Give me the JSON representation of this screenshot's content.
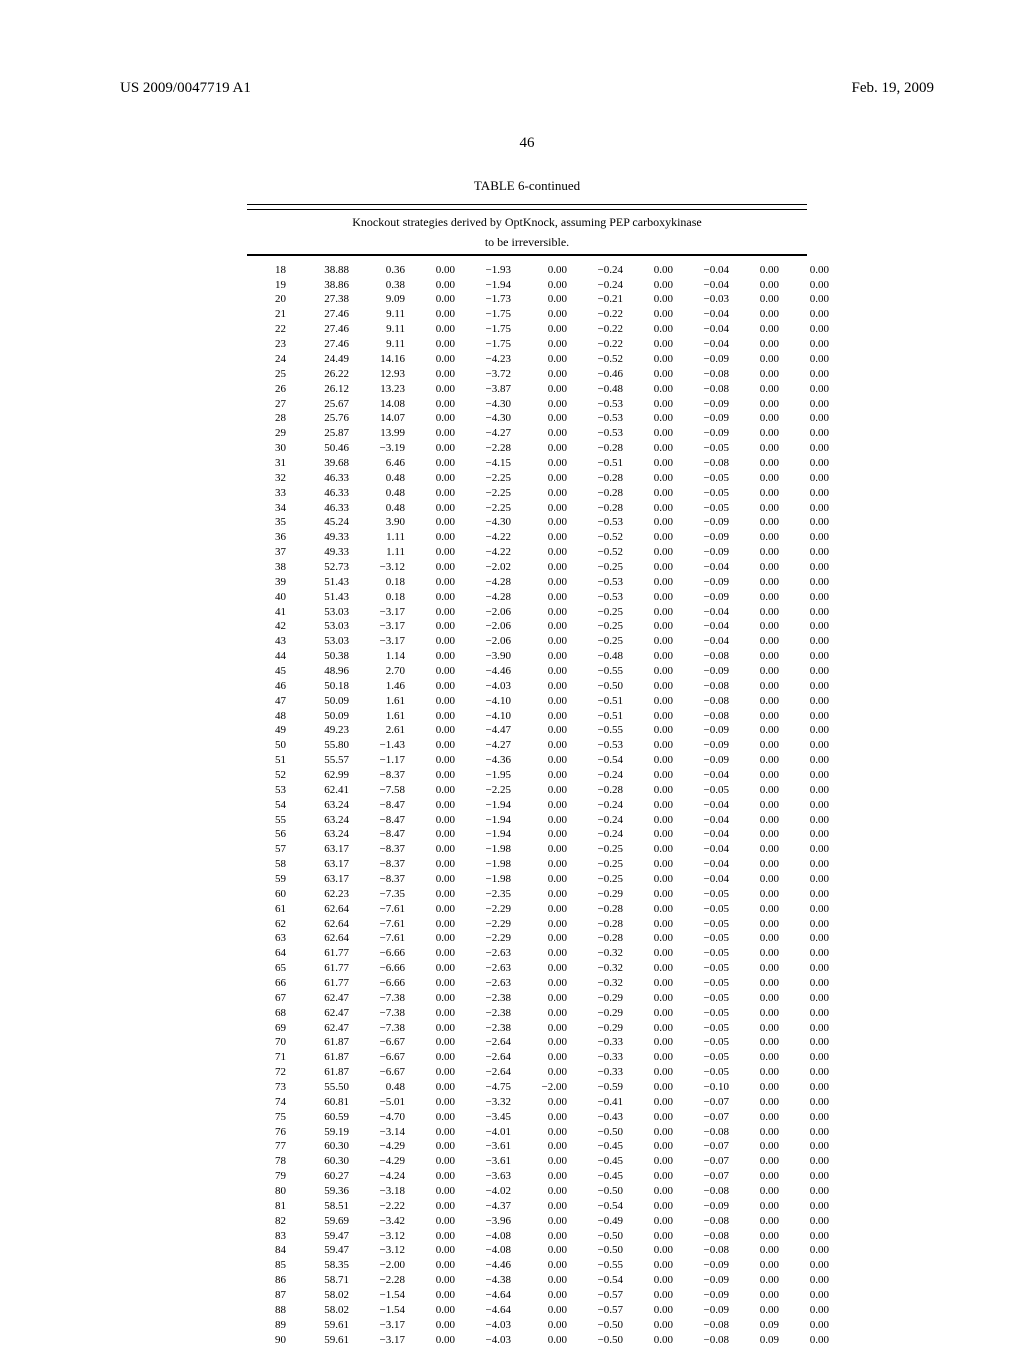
{
  "header": {
    "left": "US 2009/0047719 A1",
    "right": "Feb. 19, 2009"
  },
  "page_number": "46",
  "table": {
    "type": "table",
    "title": "TABLE 6-continued",
    "caption_line1": "Knockout strategies derived by OptKnock, assuming PEP carboxykinase",
    "caption_line2": "to be irreversible.",
    "rows": [
      [
        "18",
        "38.88",
        "0.36",
        "0.00",
        "−1.93",
        "0.00",
        "−0.24",
        "0.00",
        "−0.04",
        "0.00",
        "0.00"
      ],
      [
        "19",
        "38.86",
        "0.38",
        "0.00",
        "−1.94",
        "0.00",
        "−0.24",
        "0.00",
        "−0.04",
        "0.00",
        "0.00"
      ],
      [
        "20",
        "27.38",
        "9.09",
        "0.00",
        "−1.73",
        "0.00",
        "−0.21",
        "0.00",
        "−0.03",
        "0.00",
        "0.00"
      ],
      [
        "21",
        "27.46",
        "9.11",
        "0.00",
        "−1.75",
        "0.00",
        "−0.22",
        "0.00",
        "−0.04",
        "0.00",
        "0.00"
      ],
      [
        "22",
        "27.46",
        "9.11",
        "0.00",
        "−1.75",
        "0.00",
        "−0.22",
        "0.00",
        "−0.04",
        "0.00",
        "0.00"
      ],
      [
        "23",
        "27.46",
        "9.11",
        "0.00",
        "−1.75",
        "0.00",
        "−0.22",
        "0.00",
        "−0.04",
        "0.00",
        "0.00"
      ],
      [
        "24",
        "24.49",
        "14.16",
        "0.00",
        "−4.23",
        "0.00",
        "−0.52",
        "0.00",
        "−0.09",
        "0.00",
        "0.00"
      ],
      [
        "25",
        "26.22",
        "12.93",
        "0.00",
        "−3.72",
        "0.00",
        "−0.46",
        "0.00",
        "−0.08",
        "0.00",
        "0.00"
      ],
      [
        "26",
        "26.12",
        "13.23",
        "0.00",
        "−3.87",
        "0.00",
        "−0.48",
        "0.00",
        "−0.08",
        "0.00",
        "0.00"
      ],
      [
        "27",
        "25.67",
        "14.08",
        "0.00",
        "−4.30",
        "0.00",
        "−0.53",
        "0.00",
        "−0.09",
        "0.00",
        "0.00"
      ],
      [
        "28",
        "25.76",
        "14.07",
        "0.00",
        "−4.30",
        "0.00",
        "−0.53",
        "0.00",
        "−0.09",
        "0.00",
        "0.00"
      ],
      [
        "29",
        "25.87",
        "13.99",
        "0.00",
        "−4.27",
        "0.00",
        "−0.53",
        "0.00",
        "−0.09",
        "0.00",
        "0.00"
      ],
      [
        "30",
        "50.46",
        "−3.19",
        "0.00",
        "−2.28",
        "0.00",
        "−0.28",
        "0.00",
        "−0.05",
        "0.00",
        "0.00"
      ],
      [
        "31",
        "39.68",
        "6.46",
        "0.00",
        "−4.15",
        "0.00",
        "−0.51",
        "0.00",
        "−0.08",
        "0.00",
        "0.00"
      ],
      [
        "32",
        "46.33",
        "0.48",
        "0.00",
        "−2.25",
        "0.00",
        "−0.28",
        "0.00",
        "−0.05",
        "0.00",
        "0.00"
      ],
      [
        "33",
        "46.33",
        "0.48",
        "0.00",
        "−2.25",
        "0.00",
        "−0.28",
        "0.00",
        "−0.05",
        "0.00",
        "0.00"
      ],
      [
        "34",
        "46.33",
        "0.48",
        "0.00",
        "−2.25",
        "0.00",
        "−0.28",
        "0.00",
        "−0.05",
        "0.00",
        "0.00"
      ],
      [
        "35",
        "45.24",
        "3.90",
        "0.00",
        "−4.30",
        "0.00",
        "−0.53",
        "0.00",
        "−0.09",
        "0.00",
        "0.00"
      ],
      [
        "36",
        "49.33",
        "1.11",
        "0.00",
        "−4.22",
        "0.00",
        "−0.52",
        "0.00",
        "−0.09",
        "0.00",
        "0.00"
      ],
      [
        "37",
        "49.33",
        "1.11",
        "0.00",
        "−4.22",
        "0.00",
        "−0.52",
        "0.00",
        "−0.09",
        "0.00",
        "0.00"
      ],
      [
        "38",
        "52.73",
        "−3.12",
        "0.00",
        "−2.02",
        "0.00",
        "−0.25",
        "0.00",
        "−0.04",
        "0.00",
        "0.00"
      ],
      [
        "39",
        "51.43",
        "0.18",
        "0.00",
        "−4.28",
        "0.00",
        "−0.53",
        "0.00",
        "−0.09",
        "0.00",
        "0.00"
      ],
      [
        "40",
        "51.43",
        "0.18",
        "0.00",
        "−4.28",
        "0.00",
        "−0.53",
        "0.00",
        "−0.09",
        "0.00",
        "0.00"
      ],
      [
        "41",
        "53.03",
        "−3.17",
        "0.00",
        "−2.06",
        "0.00",
        "−0.25",
        "0.00",
        "−0.04",
        "0.00",
        "0.00"
      ],
      [
        "42",
        "53.03",
        "−3.17",
        "0.00",
        "−2.06",
        "0.00",
        "−0.25",
        "0.00",
        "−0.04",
        "0.00",
        "0.00"
      ],
      [
        "43",
        "53.03",
        "−3.17",
        "0.00",
        "−2.06",
        "0.00",
        "−0.25",
        "0.00",
        "−0.04",
        "0.00",
        "0.00"
      ],
      [
        "44",
        "50.38",
        "1.14",
        "0.00",
        "−3.90",
        "0.00",
        "−0.48",
        "0.00",
        "−0.08",
        "0.00",
        "0.00"
      ],
      [
        "45",
        "48.96",
        "2.70",
        "0.00",
        "−4.46",
        "0.00",
        "−0.55",
        "0.00",
        "−0.09",
        "0.00",
        "0.00"
      ],
      [
        "46",
        "50.18",
        "1.46",
        "0.00",
        "−4.03",
        "0.00",
        "−0.50",
        "0.00",
        "−0.08",
        "0.00",
        "0.00"
      ],
      [
        "47",
        "50.09",
        "1.61",
        "0.00",
        "−4.10",
        "0.00",
        "−0.51",
        "0.00",
        "−0.08",
        "0.00",
        "0.00"
      ],
      [
        "48",
        "50.09",
        "1.61",
        "0.00",
        "−4.10",
        "0.00",
        "−0.51",
        "0.00",
        "−0.08",
        "0.00",
        "0.00"
      ],
      [
        "49",
        "49.23",
        "2.61",
        "0.00",
        "−4.47",
        "0.00",
        "−0.55",
        "0.00",
        "−0.09",
        "0.00",
        "0.00"
      ],
      [
        "50",
        "55.80",
        "−1.43",
        "0.00",
        "−4.27",
        "0.00",
        "−0.53",
        "0.00",
        "−0.09",
        "0.00",
        "0.00"
      ],
      [
        "51",
        "55.57",
        "−1.17",
        "0.00",
        "−4.36",
        "0.00",
        "−0.54",
        "0.00",
        "−0.09",
        "0.00",
        "0.00"
      ],
      [
        "52",
        "62.99",
        "−8.37",
        "0.00",
        "−1.95",
        "0.00",
        "−0.24",
        "0.00",
        "−0.04",
        "0.00",
        "0.00"
      ],
      [
        "53",
        "62.41",
        "−7.58",
        "0.00",
        "−2.25",
        "0.00",
        "−0.28",
        "0.00",
        "−0.05",
        "0.00",
        "0.00"
      ],
      [
        "54",
        "63.24",
        "−8.47",
        "0.00",
        "−1.94",
        "0.00",
        "−0.24",
        "0.00",
        "−0.04",
        "0.00",
        "0.00"
      ],
      [
        "55",
        "63.24",
        "−8.47",
        "0.00",
        "−1.94",
        "0.00",
        "−0.24",
        "0.00",
        "−0.04",
        "0.00",
        "0.00"
      ],
      [
        "56",
        "63.24",
        "−8.47",
        "0.00",
        "−1.94",
        "0.00",
        "−0.24",
        "0.00",
        "−0.04",
        "0.00",
        "0.00"
      ],
      [
        "57",
        "63.17",
        "−8.37",
        "0.00",
        "−1.98",
        "0.00",
        "−0.25",
        "0.00",
        "−0.04",
        "0.00",
        "0.00"
      ],
      [
        "58",
        "63.17",
        "−8.37",
        "0.00",
        "−1.98",
        "0.00",
        "−0.25",
        "0.00",
        "−0.04",
        "0.00",
        "0.00"
      ],
      [
        "59",
        "63.17",
        "−8.37",
        "0.00",
        "−1.98",
        "0.00",
        "−0.25",
        "0.00",
        "−0.04",
        "0.00",
        "0.00"
      ],
      [
        "60",
        "62.23",
        "−7.35",
        "0.00",
        "−2.35",
        "0.00",
        "−0.29",
        "0.00",
        "−0.05",
        "0.00",
        "0.00"
      ],
      [
        "61",
        "62.64",
        "−7.61",
        "0.00",
        "−2.29",
        "0.00",
        "−0.28",
        "0.00",
        "−0.05",
        "0.00",
        "0.00"
      ],
      [
        "62",
        "62.64",
        "−7.61",
        "0.00",
        "−2.29",
        "0.00",
        "−0.28",
        "0.00",
        "−0.05",
        "0.00",
        "0.00"
      ],
      [
        "63",
        "62.64",
        "−7.61",
        "0.00",
        "−2.29",
        "0.00",
        "−0.28",
        "0.00",
        "−0.05",
        "0.00",
        "0.00"
      ],
      [
        "64",
        "61.77",
        "−6.66",
        "0.00",
        "−2.63",
        "0.00",
        "−0.32",
        "0.00",
        "−0.05",
        "0.00",
        "0.00"
      ],
      [
        "65",
        "61.77",
        "−6.66",
        "0.00",
        "−2.63",
        "0.00",
        "−0.32",
        "0.00",
        "−0.05",
        "0.00",
        "0.00"
      ],
      [
        "66",
        "61.77",
        "−6.66",
        "0.00",
        "−2.63",
        "0.00",
        "−0.32",
        "0.00",
        "−0.05",
        "0.00",
        "0.00"
      ],
      [
        "67",
        "62.47",
        "−7.38",
        "0.00",
        "−2.38",
        "0.00",
        "−0.29",
        "0.00",
        "−0.05",
        "0.00",
        "0.00"
      ],
      [
        "68",
        "62.47",
        "−7.38",
        "0.00",
        "−2.38",
        "0.00",
        "−0.29",
        "0.00",
        "−0.05",
        "0.00",
        "0.00"
      ],
      [
        "69",
        "62.47",
        "−7.38",
        "0.00",
        "−2.38",
        "0.00",
        "−0.29",
        "0.00",
        "−0.05",
        "0.00",
        "0.00"
      ],
      [
        "70",
        "61.87",
        "−6.67",
        "0.00",
        "−2.64",
        "0.00",
        "−0.33",
        "0.00",
        "−0.05",
        "0.00",
        "0.00"
      ],
      [
        "71",
        "61.87",
        "−6.67",
        "0.00",
        "−2.64",
        "0.00",
        "−0.33",
        "0.00",
        "−0.05",
        "0.00",
        "0.00"
      ],
      [
        "72",
        "61.87",
        "−6.67",
        "0.00",
        "−2.64",
        "0.00",
        "−0.33",
        "0.00",
        "−0.05",
        "0.00",
        "0.00"
      ],
      [
        "73",
        "55.50",
        "0.48",
        "0.00",
        "−4.75",
        "−2.00",
        "−0.59",
        "0.00",
        "−0.10",
        "0.00",
        "0.00"
      ],
      [
        "74",
        "60.81",
        "−5.01",
        "0.00",
        "−3.32",
        "0.00",
        "−0.41",
        "0.00",
        "−0.07",
        "0.00",
        "0.00"
      ],
      [
        "75",
        "60.59",
        "−4.70",
        "0.00",
        "−3.45",
        "0.00",
        "−0.43",
        "0.00",
        "−0.07",
        "0.00",
        "0.00"
      ],
      [
        "76",
        "59.19",
        "−3.14",
        "0.00",
        "−4.01",
        "0.00",
        "−0.50",
        "0.00",
        "−0.08",
        "0.00",
        "0.00"
      ],
      [
        "77",
        "60.30",
        "−4.29",
        "0.00",
        "−3.61",
        "0.00",
        "−0.45",
        "0.00",
        "−0.07",
        "0.00",
        "0.00"
      ],
      [
        "78",
        "60.30",
        "−4.29",
        "0.00",
        "−3.61",
        "0.00",
        "−0.45",
        "0.00",
        "−0.07",
        "0.00",
        "0.00"
      ],
      [
        "79",
        "60.27",
        "−4.24",
        "0.00",
        "−3.63",
        "0.00",
        "−0.45",
        "0.00",
        "−0.07",
        "0.00",
        "0.00"
      ],
      [
        "80",
        "59.36",
        "−3.18",
        "0.00",
        "−4.02",
        "0.00",
        "−0.50",
        "0.00",
        "−0.08",
        "0.00",
        "0.00"
      ],
      [
        "81",
        "58.51",
        "−2.22",
        "0.00",
        "−4.37",
        "0.00",
        "−0.54",
        "0.00",
        "−0.09",
        "0.00",
        "0.00"
      ],
      [
        "82",
        "59.69",
        "−3.42",
        "0.00",
        "−3.96",
        "0.00",
        "−0.49",
        "0.00",
        "−0.08",
        "0.00",
        "0.00"
      ],
      [
        "83",
        "59.47",
        "−3.12",
        "0.00",
        "−4.08",
        "0.00",
        "−0.50",
        "0.00",
        "−0.08",
        "0.00",
        "0.00"
      ],
      [
        "84",
        "59.47",
        "−3.12",
        "0.00",
        "−4.08",
        "0.00",
        "−0.50",
        "0.00",
        "−0.08",
        "0.00",
        "0.00"
      ],
      [
        "85",
        "58.35",
        "−2.00",
        "0.00",
        "−4.46",
        "0.00",
        "−0.55",
        "0.00",
        "−0.09",
        "0.00",
        "0.00"
      ],
      [
        "86",
        "58.71",
        "−2.28",
        "0.00",
        "−4.38",
        "0.00",
        "−0.54",
        "0.00",
        "−0.09",
        "0.00",
        "0.00"
      ],
      [
        "87",
        "58.02",
        "−1.54",
        "0.00",
        "−4.64",
        "0.00",
        "−0.57",
        "0.00",
        "−0.09",
        "0.00",
        "0.00"
      ],
      [
        "88",
        "58.02",
        "−1.54",
        "0.00",
        "−4.64",
        "0.00",
        "−0.57",
        "0.00",
        "−0.09",
        "0.00",
        "0.00"
      ],
      [
        "89",
        "59.61",
        "−3.17",
        "0.00",
        "−4.03",
        "0.00",
        "−0.50",
        "0.00",
        "−0.08",
        "0.09",
        "0.00"
      ],
      [
        "90",
        "59.61",
        "−3.17",
        "0.00",
        "−4.03",
        "0.00",
        "−0.50",
        "0.00",
        "−0.08",
        "0.09",
        "0.00"
      ]
    ]
  }
}
